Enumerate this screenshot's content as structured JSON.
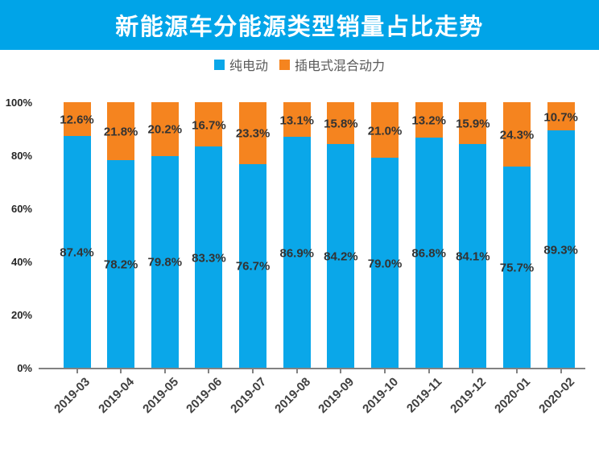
{
  "title": "新能源车分能源类型销量占比走势",
  "colors": {
    "banner_bg": "#00A4E8",
    "blue": "#0AA7E9",
    "orange": "#F5841F",
    "axis": "#828282",
    "value_label": "#333333",
    "tick_label": "#3d3d3d"
  },
  "legend": [
    {
      "label": "纯电动",
      "color": "#0AA7E9"
    },
    {
      "label": "插电式混合动力",
      "color": "#F5841F"
    }
  ],
  "chart_data": {
    "type": "bar",
    "stacked": true,
    "title": "新能源车分能源类型销量占比走势",
    "categories": [
      "2019-03",
      "2019-04",
      "2019-05",
      "2019-06",
      "2019-07",
      "2019-08",
      "2019-09",
      "2019-10",
      "2019-11",
      "2019-12",
      "2020-01",
      "2020-02"
    ],
    "series": [
      {
        "name": "纯电动",
        "color": "#0AA7E9",
        "values": [
          87.4,
          78.2,
          79.8,
          83.3,
          76.7,
          86.9,
          84.2,
          79.0,
          86.8,
          84.1,
          75.7,
          89.3
        ]
      },
      {
        "name": "插电式混合动力",
        "color": "#F5841F",
        "values": [
          12.6,
          21.8,
          20.2,
          16.7,
          23.3,
          13.1,
          15.8,
          21.0,
          13.2,
          15.9,
          24.3,
          10.7
        ]
      }
    ],
    "value_suffix": "%",
    "xlabel": "",
    "ylabel": "",
    "ylim": [
      0,
      100
    ],
    "yticks": [
      "0%",
      "20%",
      "40%",
      "60%",
      "80%",
      "100%"
    ],
    "grid": false,
    "legend_position": "top"
  }
}
